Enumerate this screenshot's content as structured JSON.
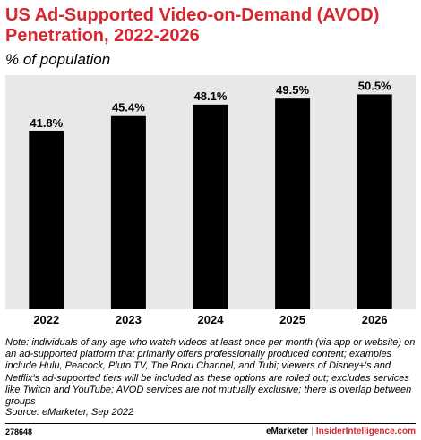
{
  "chart_data": {
    "type": "bar",
    "title": "US Ad-Supported Video-on-Demand (AVOD) Penetration, 2022-2026",
    "subtitle": "% of population",
    "categories": [
      "2022",
      "2023",
      "2024",
      "2025",
      "2026"
    ],
    "values": [
      41.8,
      45.4,
      48.1,
      49.5,
      50.5
    ],
    "value_labels": [
      "41.8%",
      "45.4%",
      "48.1%",
      "49.5%",
      "50.5%"
    ],
    "ylim": [
      0,
      55
    ],
    "grid": false,
    "legend": "none",
    "bar_color": "#000000",
    "background_color": "#e8e8e8"
  },
  "note": "Note: individuals of any age who watch videos at least once per month (via app or website) on an ad-supported platform that primarily offers professionally produced content; examples include Hulu, Peacock, Pluto TV, The Roku Channel, and Tubi; viewers of Disney+'s and Netflix's ad-supported tiers will be included as these options are rolled out; excludes services like Twitch and YouTube; AVOD services are not mutually exclusive; there is overlap between groups",
  "source": "Source: eMarketer, Sep 2022",
  "footer": {
    "chart_id": "278648",
    "brand": "eMarketer",
    "separator": "|",
    "brand_secondary": "InsiderIntelligence.com"
  },
  "colors": {
    "title": "#d8262e",
    "bar": "#000000",
    "plot_background": "#e8e8e8"
  }
}
